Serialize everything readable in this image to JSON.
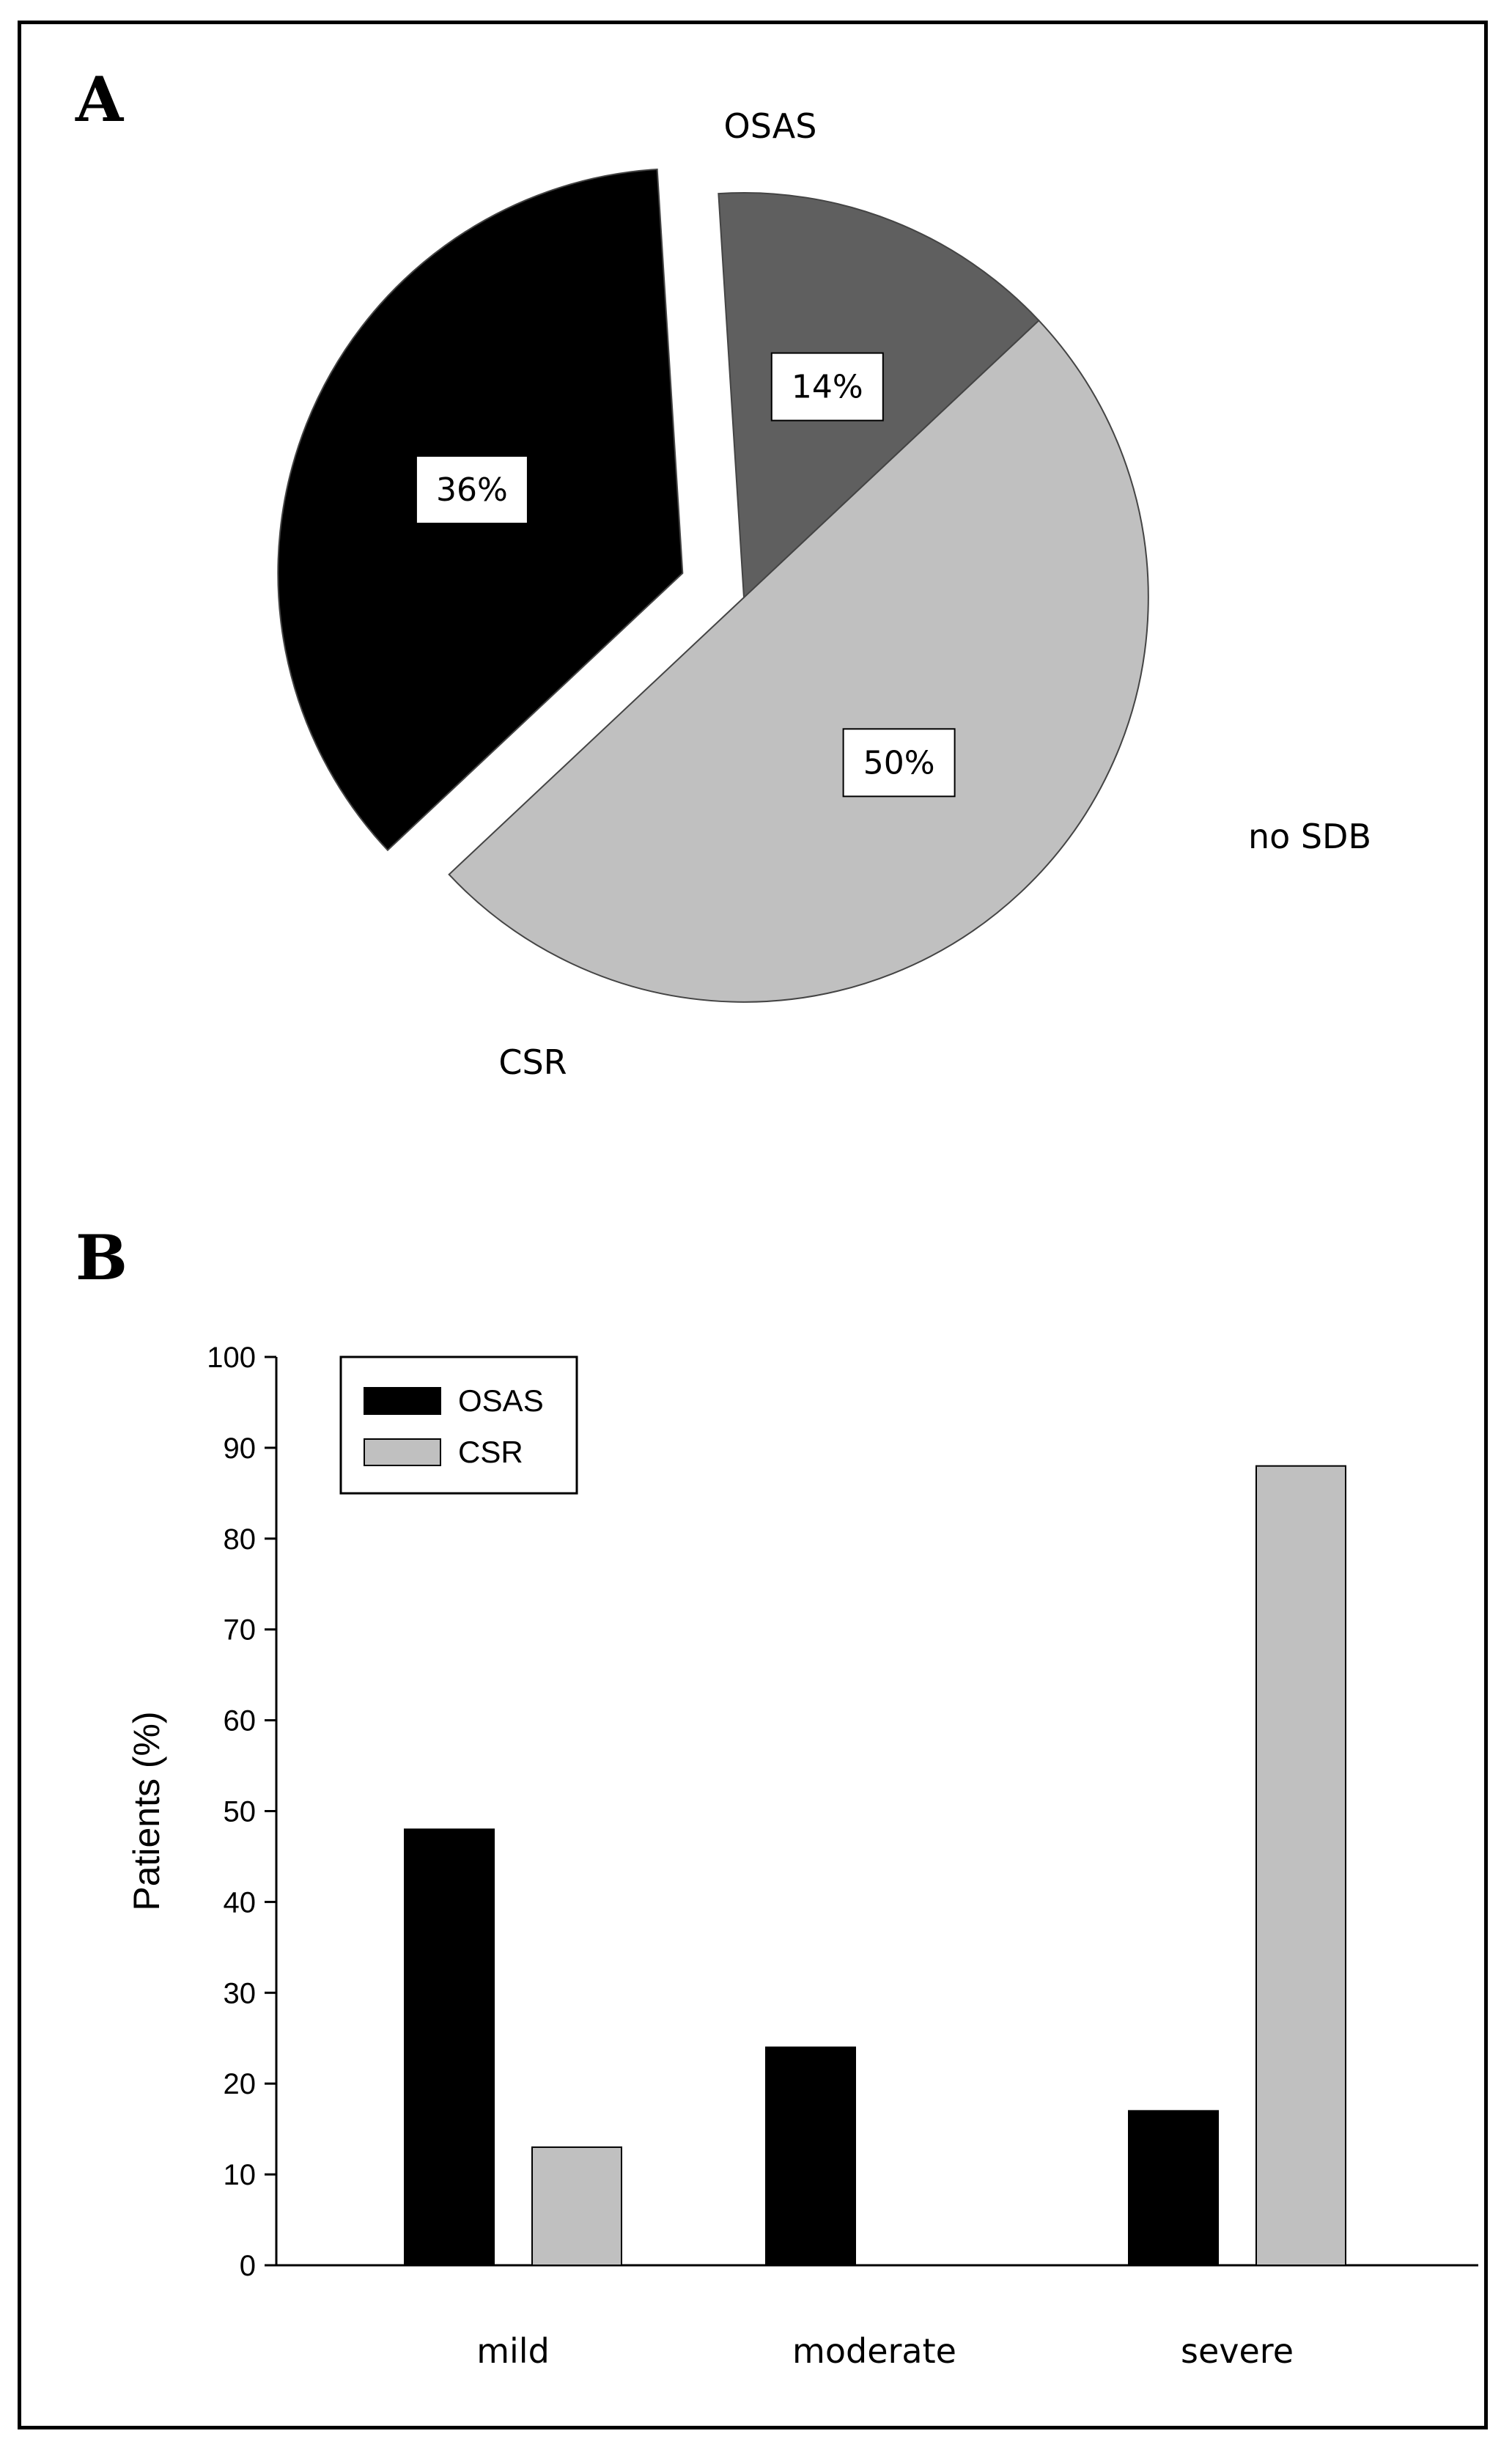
{
  "chart_data": [
    {
      "panel": "A",
      "type": "pie",
      "slices": [
        {
          "label": "OSAS",
          "value": 50,
          "value_label": "50%",
          "color": "#c0c0c0",
          "exploded": false
        },
        {
          "label": "no SDB",
          "value": 36,
          "value_label": "36%",
          "color": "#000000",
          "exploded": true
        },
        {
          "label": "CSR",
          "value": 14,
          "value_label": "14%",
          "color": "#5f5f5f",
          "exploded": false
        }
      ]
    },
    {
      "panel": "B",
      "type": "bar",
      "categories": [
        "mild",
        "moderate",
        "severe"
      ],
      "series": [
        {
          "name": "OSAS",
          "values": [
            48,
            24,
            17
          ],
          "color": "#000000"
        },
        {
          "name": "CSR",
          "values": [
            13,
            0,
            88
          ],
          "color": "#c0c0c0"
        }
      ],
      "ylabel": "Patients (%)",
      "xlabel": "",
      "ylim": [
        0,
        100
      ],
      "yticks": [
        0,
        10,
        20,
        30,
        40,
        50,
        60,
        70,
        80,
        90,
        100
      ],
      "legend": "top-left",
      "grid": false
    }
  ]
}
